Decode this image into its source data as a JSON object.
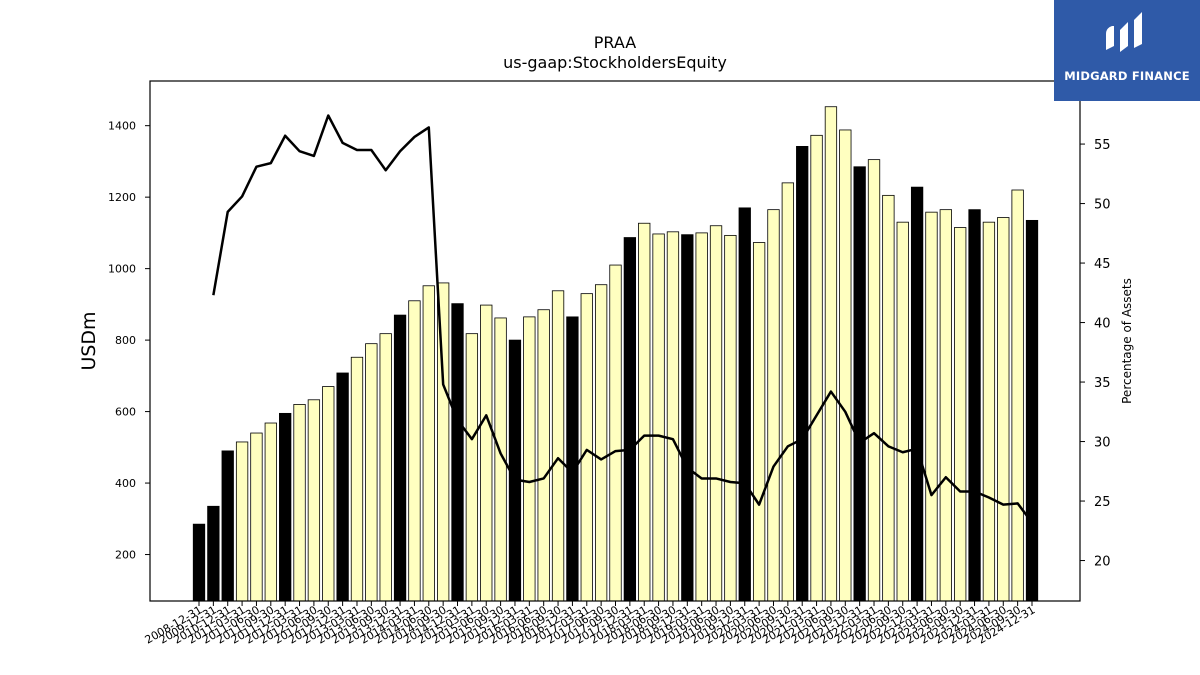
{
  "logo": {
    "text": "MIDGARD FINANCE"
  },
  "chart_data": {
    "type": "bar",
    "title": "PRAA",
    "subtitle": "us-gaap:StockholdersEquity",
    "ylabel": "USDm",
    "y2label": "Percentage of Assets",
    "ylim": [
      70,
      1525
    ],
    "y2lim": [
      16.6,
      60.3
    ],
    "yticks": [
      200,
      400,
      600,
      800,
      1000,
      1200,
      1400
    ],
    "y2ticks": [
      20,
      25,
      30,
      35,
      40,
      45,
      50,
      55
    ],
    "grid": false,
    "colors": {
      "annual_bar": "#000000",
      "quarter_bar": "#ffffc0",
      "line": "#000000"
    },
    "categories": [
      "2008-12-31",
      "2009-12-31",
      "2010-12-31",
      "2011-03-31",
      "2011-06-30",
      "2011-09-30",
      "2011-12-31",
      "2012-03-31",
      "2012-06-30",
      "2012-09-30",
      "2012-12-31",
      "2013-03-31",
      "2013-06-30",
      "2013-09-30",
      "2013-12-31",
      "2014-03-31",
      "2014-06-30",
      "2014-09-30",
      "2014-12-31",
      "2015-03-31",
      "2015-06-30",
      "2015-09-30",
      "2015-12-31",
      "2016-03-31",
      "2016-06-30",
      "2016-09-30",
      "2016-12-31",
      "2017-03-31",
      "2017-06-30",
      "2017-09-30",
      "2017-12-31",
      "2018-03-31",
      "2018-06-30",
      "2018-09-30",
      "2018-12-31",
      "2019-03-31",
      "2019-06-30",
      "2019-09-30",
      "2019-12-31",
      "2020-03-31",
      "2020-06-30",
      "2020-09-30",
      "2020-12-31",
      "2021-03-31",
      "2021-06-30",
      "2021-09-30",
      "2021-12-31",
      "2022-03-31",
      "2022-06-30",
      "2022-09-30",
      "2022-12-31",
      "2023-03-31",
      "2023-06-30",
      "2023-09-30",
      "2023-12-31",
      "2024-03-31",
      "2024-06-30",
      "2024-09-30",
      "2024-12-31"
    ],
    "annual": [
      true,
      true,
      true,
      false,
      false,
      false,
      true,
      false,
      false,
      false,
      true,
      false,
      false,
      false,
      true,
      false,
      false,
      false,
      true,
      false,
      false,
      false,
      true,
      false,
      false,
      false,
      true,
      false,
      false,
      false,
      true,
      false,
      false,
      false,
      true,
      false,
      false,
      false,
      true,
      false,
      false,
      false,
      true,
      false,
      false,
      false,
      true,
      false,
      false,
      false,
      true,
      false,
      false,
      false,
      true,
      false,
      false,
      false,
      true
    ],
    "series": [
      {
        "name": "",
        "kind": "bar",
        "values": [
          285,
          335,
          490,
          515,
          540,
          568,
          595,
          620,
          633,
          670,
          708,
          752,
          790,
          818,
          870,
          910,
          952,
          960,
          902,
          818,
          898,
          862,
          800,
          865,
          885,
          938,
          865,
          930,
          955,
          1010,
          1087,
          1127,
          1097,
          1103,
          1095,
          1100,
          1120,
          1093,
          1170,
          1073,
          1165,
          1240,
          1342,
          1373,
          1453,
          1388,
          1285,
          1305,
          1205,
          1130,
          1228,
          1158,
          1165,
          1115,
          1165,
          1130,
          1143,
          1220,
          1135
        ]
      },
      {
        "name": "",
        "kind": "line",
        "axis": "right",
        "values": [
          null,
          42.3,
          49.3,
          50.6,
          53.1,
          53.4,
          55.7,
          54.4,
          54.0,
          57.4,
          55.1,
          54.5,
          54.5,
          52.8,
          54.4,
          55.6,
          56.4,
          34.8,
          31.8,
          30.2,
          32.2,
          29.0,
          26.8,
          26.6,
          26.9,
          28.6,
          27.4,
          29.3,
          28.5,
          29.2,
          29.3,
          30.5,
          30.5,
          30.2,
          27.8,
          26.9,
          26.9,
          26.6,
          26.5,
          24.7,
          27.9,
          29.6,
          30.2,
          32.2,
          34.2,
          32.5,
          29.9,
          30.7,
          29.6,
          29.1,
          29.4,
          25.5,
          27.0,
          25.8,
          25.8,
          25.3,
          24.7,
          24.8,
          23.2
        ]
      }
    ]
  }
}
